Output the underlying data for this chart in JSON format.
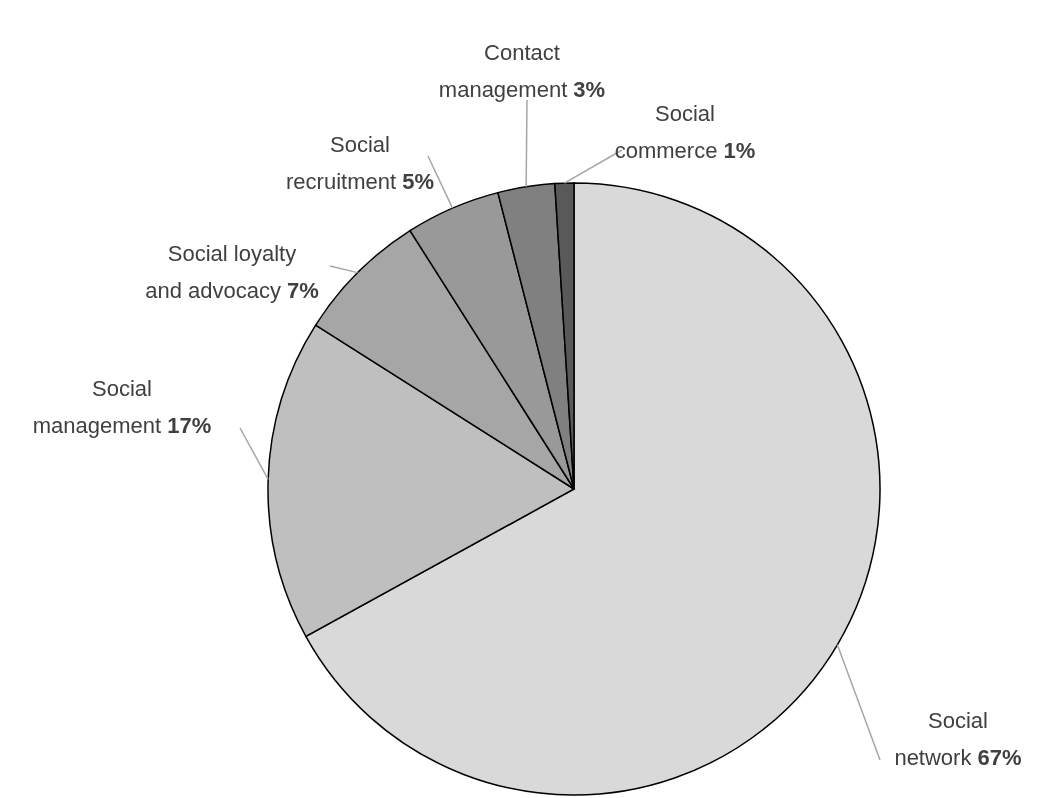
{
  "chart_data": {
    "type": "pie",
    "categories": [
      "Social network",
      "Social management",
      "Social loyalty and advocacy",
      "Social recruitment",
      "Contact management",
      "Social commerce"
    ],
    "values": [
      67,
      17,
      7,
      5,
      3,
      1
    ],
    "colors": [
      "#d9d9d9",
      "#bfbfbf",
      "#a6a6a6",
      "#999999",
      "#808080",
      "#595959"
    ],
    "value_labels": [
      "67%",
      "17%",
      "7%",
      "5%",
      "3%",
      "1%"
    ]
  }
}
